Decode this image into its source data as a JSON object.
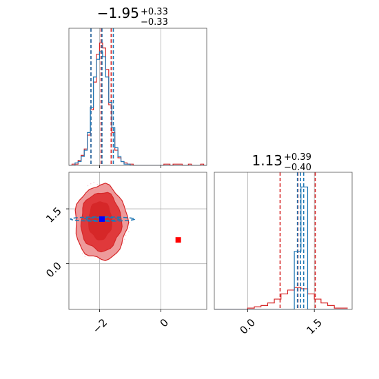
{
  "chart_data": [
    {
      "type": "histogram",
      "panel": "marginal-param1",
      "title": {
        "value": "−1.95",
        "plus": "+0.33",
        "minus": "−0.33"
      },
      "xlim": [
        -3.0,
        1.5
      ],
      "xticks": [
        -2,
        0
      ],
      "bins_x": [
        -3.0,
        -2.9,
        -2.8,
        -2.7,
        -2.6,
        -2.5,
        -2.4,
        -2.3,
        -2.2,
        -2.1,
        -2.0,
        -1.9,
        -1.8,
        -1.7,
        -1.6,
        -1.5,
        -1.4,
        -1.3,
        -1.2,
        -1.1,
        -1.0,
        -0.9,
        -0.8,
        -0.7,
        -0.6,
        -0.5,
        -0.4,
        -0.3,
        -0.2,
        -0.1,
        0.0,
        0.1,
        0.2,
        0.3,
        0.4,
        0.5,
        0.6,
        0.7,
        0.8,
        0.9,
        1.0,
        1.1,
        1.2,
        1.3,
        1.4
      ],
      "series": [
        {
          "color": "#d62728",
          "counts": [
            0,
            1,
            1,
            4,
            8,
            13,
            24,
            44,
            66,
            88,
            97,
            93,
            76,
            48,
            26,
            12,
            6,
            3,
            2,
            1,
            1,
            0,
            0,
            0,
            0,
            0,
            0,
            0,
            0,
            0,
            0,
            1,
            1,
            0,
            1,
            1,
            1,
            0,
            0,
            1,
            0,
            0,
            0,
            1,
            0
          ],
          "quantiles": [
            -2.28,
            -1.95,
            -1.62
          ]
        },
        {
          "color": "#1f77b4",
          "counts": [
            0,
            0,
            2,
            3,
            7,
            12,
            26,
            46,
            70,
            84,
            90,
            86,
            70,
            50,
            30,
            14,
            7,
            3,
            1,
            1,
            0,
            0,
            0,
            0,
            0,
            0,
            0,
            0,
            0,
            0,
            0,
            0,
            0,
            0,
            0,
            0,
            0,
            0,
            0,
            0,
            0,
            0,
            0,
            0,
            0
          ],
          "quantiles": [
            -2.28,
            -1.92,
            -1.55
          ]
        }
      ]
    },
    {
      "type": "histogram",
      "panel": "marginal-param2",
      "title": {
        "value": "1.13",
        "plus": "+0.39",
        "minus": "−0.40"
      },
      "xlim": [
        -0.75,
        2.35
      ],
      "xticks": [
        0.0,
        1.5
      ],
      "xtick_labels": [
        "0.0",
        "1.5"
      ],
      "bins_x": [
        -0.75,
        -0.6,
        -0.45,
        -0.3,
        -0.15,
        0.0,
        0.15,
        0.3,
        0.45,
        0.6,
        0.75,
        0.9,
        1.05,
        1.2,
        1.35,
        1.5,
        1.65,
        1.8,
        1.95,
        2.1,
        2.25
      ],
      "series": [
        {
          "color": "#d62728",
          "counts": [
            0,
            0,
            0,
            0,
            0,
            1,
            2,
            3,
            5,
            8,
            12,
            15,
            17,
            16,
            12,
            8,
            5,
            3,
            1,
            1
          ],
          "quantiles": [
            0.73,
            1.13,
            1.52
          ]
        },
        {
          "color": "#1f77b4",
          "counts": [
            0,
            0,
            0,
            0,
            0,
            0,
            0,
            0,
            0,
            0,
            0,
            0,
            45,
            95,
            0,
            0,
            0,
            0,
            0,
            0
          ],
          "quantiles": [
            1.12,
            1.19,
            1.26
          ]
        }
      ]
    },
    {
      "type": "contour",
      "panel": "joint",
      "xlim": [
        -3.0,
        1.5
      ],
      "ylim": [
        -1.25,
        2.5
      ],
      "xticks": [
        -2,
        0
      ],
      "yticks": [
        0.0,
        1.5
      ],
      "ytick_labels": [
        "0.0",
        "1.5"
      ],
      "red_levels": [
        {
          "cx": -1.95,
          "cy": 1.13,
          "rx": 0.85,
          "ry": 1.02,
          "fill": "#ee9a9b"
        },
        {
          "cx": -1.95,
          "cy": 1.15,
          "rx": 0.66,
          "ry": 0.8,
          "fill": "#e0393b"
        },
        {
          "cx": -1.98,
          "cy": 1.18,
          "rx": 0.38,
          "ry": 0.52,
          "fill": "#d62728"
        }
      ],
      "blue_levels": [
        {
          "cx": -1.9,
          "cy": 1.22,
          "rx": 1.05,
          "ry": 0.06
        },
        {
          "cx": -1.9,
          "cy": 1.22,
          "rx": 0.6,
          "ry": 0.04
        }
      ],
      "markers": [
        {
          "x": -1.92,
          "y": 1.22,
          "color": "#0000ff"
        },
        {
          "x": 0.57,
          "y": 0.65,
          "color": "#ff0000"
        }
      ]
    }
  ]
}
